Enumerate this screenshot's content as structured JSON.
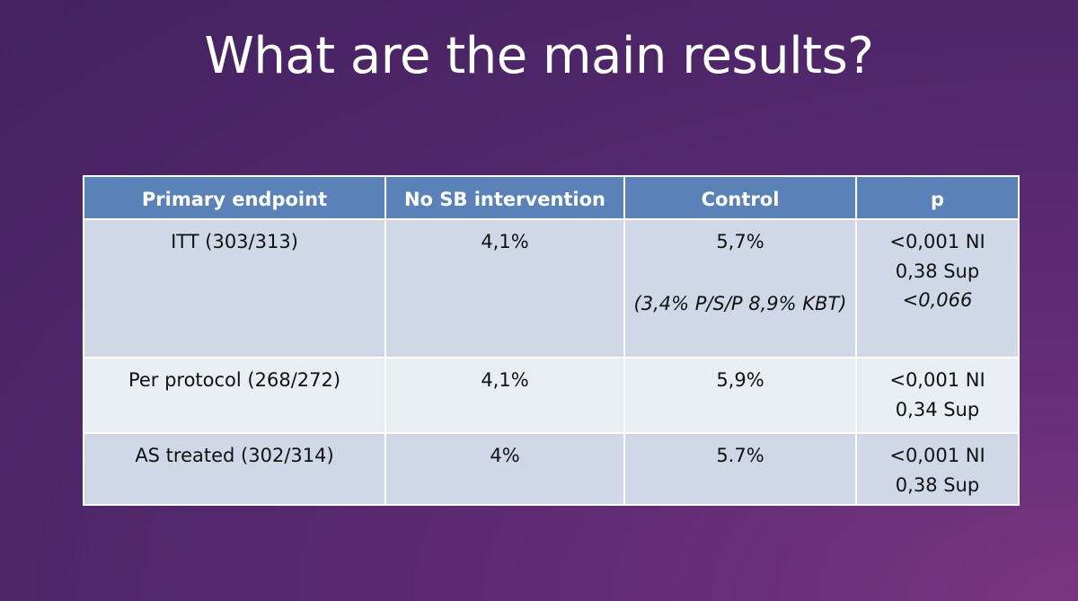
{
  "title": "What are the main results?",
  "table": {
    "headers": [
      "Primary endpoint",
      "No SB intervention",
      "Control",
      "p"
    ],
    "rows": [
      {
        "endpoint": "ITT (303/313)",
        "no_sb": "4,1%",
        "control": "5,7%",
        "control_note": "(3,4% P/S/P 8,9% KBT)",
        "p_lines": [
          "<0,001 NI",
          "0,38 Sup",
          "<0,066"
        ]
      },
      {
        "endpoint": "Per protocol (268/272)",
        "no_sb": "4,1%",
        "control": "5,9%",
        "p_lines": [
          "<0,001 NI",
          "0,34 Sup"
        ]
      },
      {
        "endpoint": "AS treated (302/314)",
        "no_sb": "4%",
        "control": "5.7%",
        "p_lines": [
          "<0,001 NI",
          "0,38 Sup"
        ]
      }
    ]
  },
  "colors": {
    "header_fill": "#5b82b8",
    "row_dark": "#d0d8e7",
    "row_light": "#e9edf4",
    "background": "#4d2668"
  }
}
